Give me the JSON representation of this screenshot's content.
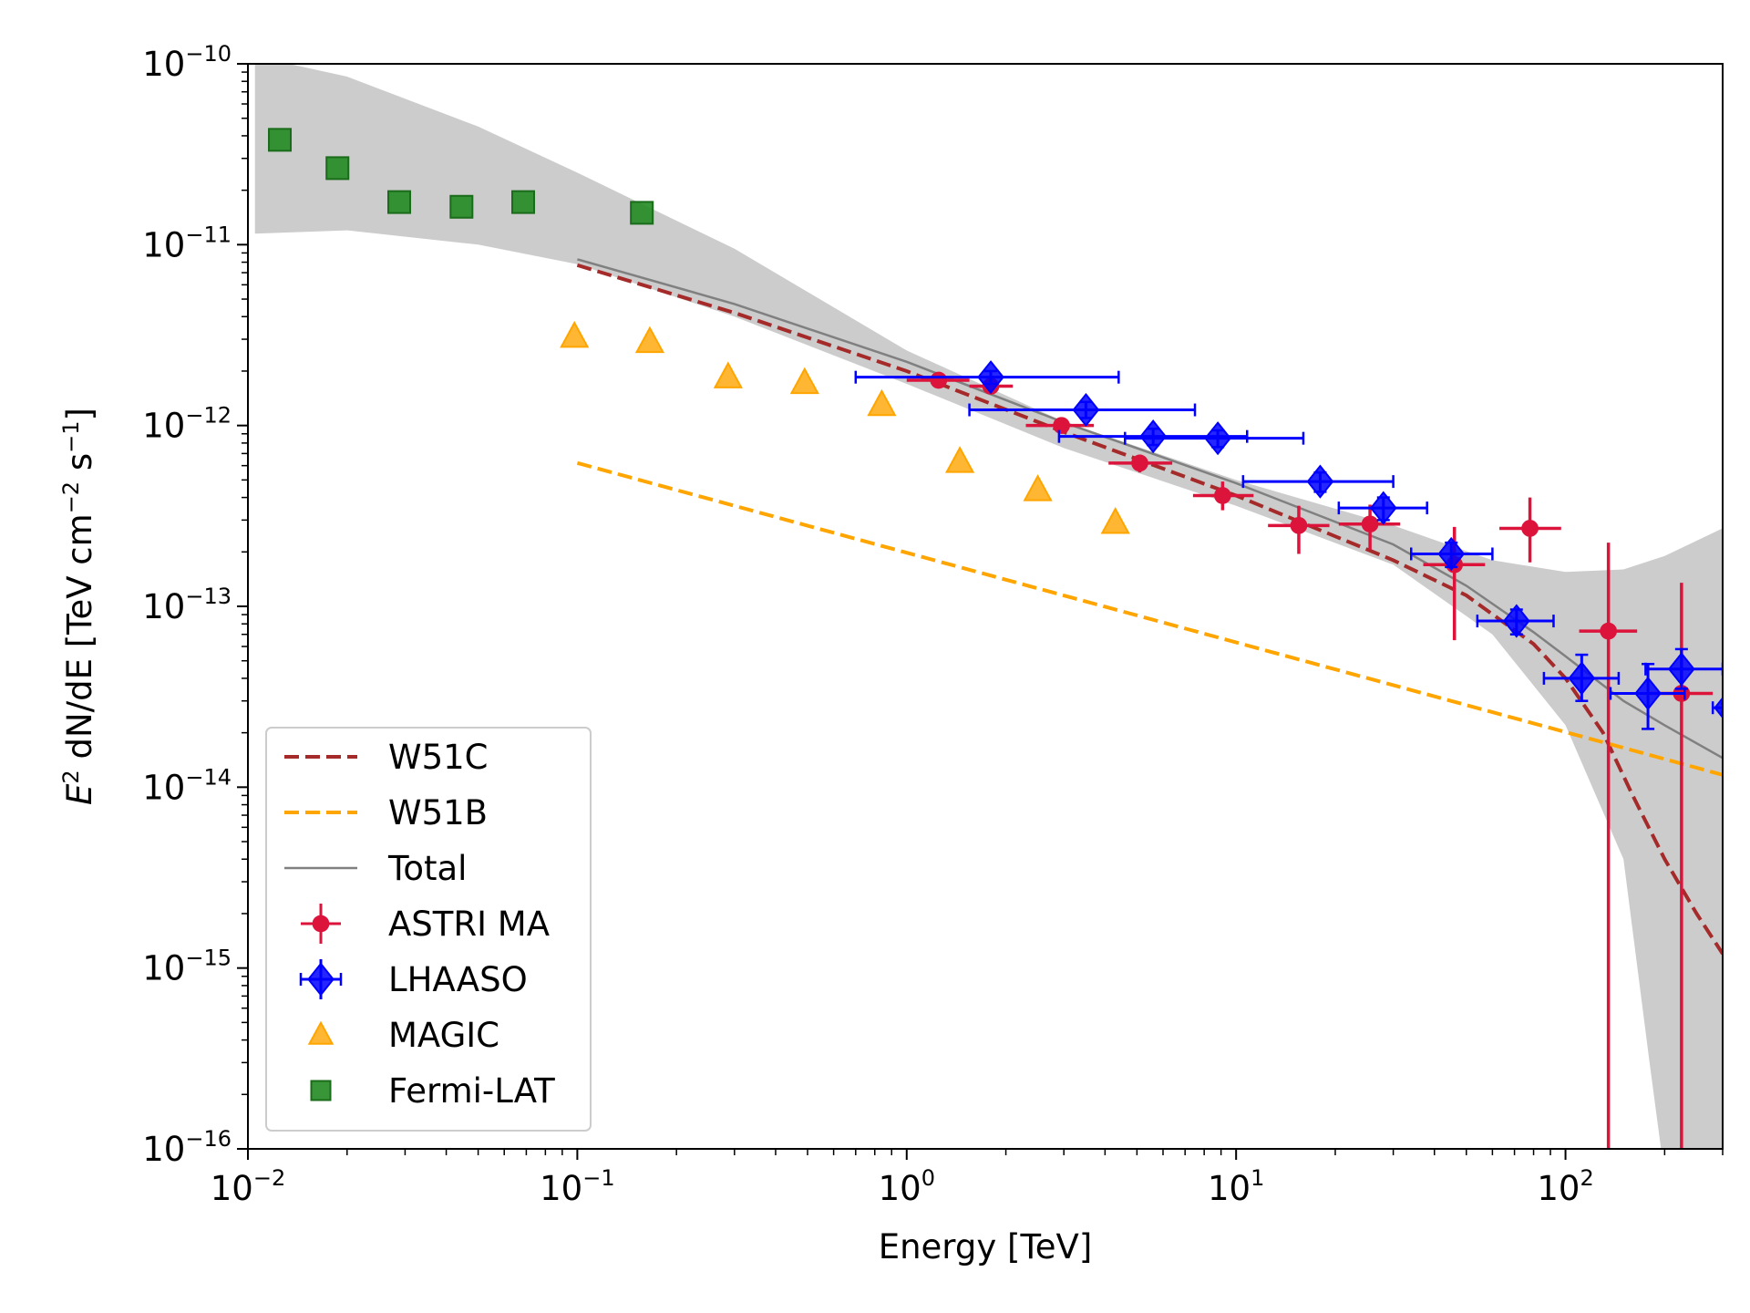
{
  "chart_data": {
    "type": "scatter",
    "title": "",
    "xlabel": "Energy [TeV]",
    "ylabel": {
      "prefix": "E",
      "prefix_sup": "2",
      "mid": " dN/dE [TeV cm",
      "mid_sup": "−2",
      "mid2": " s",
      "mid2_sup": "−1",
      "suffix": "]"
    },
    "x_scale": "log",
    "y_scale": "log",
    "xlim": [
      0.01,
      300
    ],
    "ylim": [
      1e-16,
      1e-10
    ],
    "x_ticks": [
      {
        "value": 0.01,
        "base": "10",
        "exp": "−2"
      },
      {
        "value": 0.1,
        "base": "10",
        "exp": "−1"
      },
      {
        "value": 1,
        "base": "10",
        "exp": "0"
      },
      {
        "value": 10,
        "base": "10",
        "exp": "1"
      },
      {
        "value": 100,
        "base": "10",
        "exp": "2"
      }
    ],
    "y_ticks": [
      {
        "value": 1e-10,
        "base": "10",
        "exp": "−10"
      },
      {
        "value": 1e-11,
        "base": "10",
        "exp": "−11"
      },
      {
        "value": 1e-12,
        "base": "10",
        "exp": "−12"
      },
      {
        "value": 1e-13,
        "base": "10",
        "exp": "−13"
      },
      {
        "value": 1e-14,
        "base": "10",
        "exp": "−14"
      },
      {
        "value": 1e-15,
        "base": "10",
        "exp": "−15"
      },
      {
        "value": 1e-16,
        "base": "10",
        "exp": "−16"
      }
    ],
    "legend_position": "lower-left",
    "band": {
      "name": "uncertainty band",
      "color": "#cccccc",
      "upper": [
        [
          0.0105,
          1.1e-10
        ],
        [
          0.02,
          8.5e-11
        ],
        [
          0.05,
          4.5e-11
        ],
        [
          0.1,
          2.5e-11
        ],
        [
          0.3,
          9.5e-12
        ],
        [
          1,
          2.6e-12
        ],
        [
          3,
          1.05e-12
        ],
        [
          10,
          5e-13
        ],
        [
          30,
          2.8e-13
        ],
        [
          60,
          1.8e-13
        ],
        [
          100,
          1.55e-13
        ],
        [
          150,
          1.6e-13
        ],
        [
          200,
          1.9e-13
        ],
        [
          300,
          2.7e-13
        ]
      ],
      "lower": [
        [
          0.0105,
          1.15e-11
        ],
        [
          0.02,
          1.2e-11
        ],
        [
          0.05,
          1e-11
        ],
        [
          0.1,
          7.8e-12
        ],
        [
          0.3,
          4e-12
        ],
        [
          1,
          1.7e-12
        ],
        [
          3,
          7.5e-13
        ],
        [
          10,
          3.6e-13
        ],
        [
          30,
          1.7e-13
        ],
        [
          60,
          7e-14
        ],
        [
          100,
          2.2e-14
        ],
        [
          150,
          4e-15
        ],
        [
          180,
          3e-16
        ],
        [
          195,
          1e-16
        ],
        [
          300,
          1e-16
        ]
      ]
    },
    "series": [
      {
        "name": "W51C",
        "kind": "line",
        "style": "dashed",
        "color": "#a52a2a",
        "points": [
          [
            0.1,
            7.7e-12
          ],
          [
            0.3,
            4.2e-12
          ],
          [
            1,
            2e-12
          ],
          [
            3,
            9.2e-13
          ],
          [
            10,
            4.1e-13
          ],
          [
            30,
            1.8e-13
          ],
          [
            50,
            1.15e-13
          ],
          [
            80,
            6.2e-14
          ],
          [
            100,
            4e-14
          ],
          [
            130,
            2e-14
          ],
          [
            160,
            9e-15
          ],
          [
            200,
            4e-15
          ],
          [
            250,
            2e-15
          ],
          [
            300,
            1.2e-15
          ]
        ]
      },
      {
        "name": "W51B",
        "kind": "line",
        "style": "dashed",
        "color": "#ffa500",
        "points": [
          [
            0.1,
            6.2e-13
          ],
          [
            300,
            1.17e-14
          ]
        ]
      },
      {
        "name": "Total",
        "kind": "line",
        "style": "solid",
        "color": "#808080",
        "points": [
          [
            0.1,
            8.3e-12
          ],
          [
            0.3,
            4.7e-12
          ],
          [
            1,
            2.25e-12
          ],
          [
            3,
            1.04e-12
          ],
          [
            10,
            4.8e-13
          ],
          [
            30,
            2.2e-13
          ],
          [
            50,
            1.3e-13
          ],
          [
            80,
            7.2e-14
          ],
          [
            100,
            5.3e-14
          ],
          [
            150,
            3e-14
          ],
          [
            200,
            2.2e-14
          ],
          [
            300,
            1.45e-14
          ]
        ]
      },
      {
        "name": "ASTRI MA",
        "kind": "errorbar",
        "marker": "circle",
        "color": "#dc143c",
        "points": [
          {
            "x": 1.25,
            "y": 1.78e-12,
            "xlo": 1.0,
            "xhi": 1.55,
            "ylo": 1.68e-12,
            "yhi": 1.88e-12
          },
          {
            "x": 1.8,
            "y": 1.65e-12,
            "xlo": 1.55,
            "xhi": 2.1,
            "ylo": 1.5e-12,
            "yhi": 1.8e-12
          },
          {
            "x": 2.95,
            "y": 1e-12,
            "xlo": 2.3,
            "xhi": 3.7,
            "ylo": 9.2e-13,
            "yhi": 1.08e-12
          },
          {
            "x": 5.1,
            "y": 6.2e-13,
            "xlo": 4.1,
            "xhi": 6.4,
            "ylo": 5.5e-13,
            "yhi": 6.9e-13
          },
          {
            "x": 9.1,
            "y": 4.1e-13,
            "xlo": 7.4,
            "xhi": 11.3,
            "ylo": 3.4e-13,
            "yhi": 4.9e-13
          },
          {
            "x": 15.5,
            "y": 2.8e-13,
            "xlo": 12.5,
            "xhi": 19.2,
            "ylo": 1.95e-13,
            "yhi": 3.6e-13
          },
          {
            "x": 25.5,
            "y": 2.85e-13,
            "xlo": 20.5,
            "xhi": 31.5,
            "ylo": 2.05e-13,
            "yhi": 3.65e-13
          },
          {
            "x": 46,
            "y": 1.7e-13,
            "xlo": 37,
            "xhi": 57,
            "ylo": 6.5e-14,
            "yhi": 2.75e-13
          },
          {
            "x": 78,
            "y": 2.7e-13,
            "xlo": 63,
            "xhi": 97,
            "ylo": 1.75e-13,
            "yhi": 4e-13
          },
          {
            "x": 135,
            "y": 7.3e-14,
            "xlo": 110,
            "xhi": 165,
            "ylo": 1e-16,
            "yhi": 2.25e-13
          },
          {
            "x": 225,
            "y": 3.3e-14,
            "xlo": 180,
            "xhi": 280,
            "ylo": 1e-16,
            "yhi": 1.35e-13
          }
        ]
      },
      {
        "name": "LHAASO",
        "kind": "errorbar",
        "marker": "diamond",
        "color": "#0000ff",
        "points": [
          {
            "x": 1.8,
            "y": 1.85e-12,
            "xlo": 0.7,
            "xhi": 4.4,
            "ylo": 1.7e-12,
            "yhi": 2e-12
          },
          {
            "x": 3.5,
            "y": 1.22e-12,
            "xlo": 1.55,
            "xhi": 7.5,
            "ylo": 1.1e-12,
            "yhi": 1.35e-12
          },
          {
            "x": 5.6,
            "y": 8.7e-13,
            "xlo": 2.9,
            "xhi": 10.8,
            "ylo": 7.8e-13,
            "yhi": 9.6e-13
          },
          {
            "x": 8.8,
            "y": 8.5e-13,
            "xlo": 4.6,
            "xhi": 16.0,
            "ylo": 7.6e-13,
            "yhi": 9.4e-13
          },
          {
            "x": 18,
            "y": 4.9e-13,
            "xlo": 10.5,
            "xhi": 30,
            "ylo": 4.3e-13,
            "yhi": 5.5e-13
          },
          {
            "x": 28,
            "y": 3.5e-13,
            "xlo": 20.5,
            "xhi": 38,
            "ylo": 3e-13,
            "yhi": 4e-13
          },
          {
            "x": 45,
            "y": 1.95e-13,
            "xlo": 34,
            "xhi": 60,
            "ylo": 1.65e-13,
            "yhi": 2.25e-13
          },
          {
            "x": 71,
            "y": 8.3e-14,
            "xlo": 54,
            "xhi": 92,
            "ylo": 7e-14,
            "yhi": 9.6e-14
          },
          {
            "x": 112,
            "y": 4e-14,
            "xlo": 86,
            "xhi": 145,
            "ylo": 3e-14,
            "yhi": 5.4e-14
          },
          {
            "x": 178,
            "y": 3.3e-14,
            "xlo": 137,
            "xhi": 230,
            "ylo": 2.1e-14,
            "yhi": 4.8e-14
          },
          {
            "x": 225,
            "y": 4.5e-14,
            "xlo": 175,
            "xhi": 300,
            "ylo": 3.5e-14,
            "yhi": 5.8e-14
          },
          {
            "x": 310,
            "y": 2.75e-14,
            "xlo": 280,
            "xhi": 300,
            "ylo": 2.6e-14,
            "yhi": 2.9e-14
          }
        ]
      },
      {
        "name": "MAGIC",
        "kind": "scatter",
        "marker": "triangle",
        "color": "#ffa500",
        "points": [
          [
            0.098,
            3.1e-12
          ],
          [
            0.166,
            2.9e-12
          ],
          [
            0.287,
            1.85e-12
          ],
          [
            0.49,
            1.72e-12
          ],
          [
            0.84,
            1.3e-12
          ],
          [
            1.45,
            6.3e-13
          ],
          [
            2.5,
            4.4e-13
          ],
          [
            4.3,
            2.9e-13
          ]
        ]
      },
      {
        "name": "Fermi-LAT",
        "kind": "scatter",
        "marker": "square",
        "color": "#228b22",
        "points": [
          [
            0.0125,
            3.8e-11
          ],
          [
            0.0187,
            2.65e-11
          ],
          [
            0.0288,
            1.72e-11
          ],
          [
            0.0445,
            1.62e-11
          ],
          [
            0.0685,
            1.72e-11
          ],
          [
            0.157,
            1.5e-11
          ]
        ]
      }
    ]
  }
}
